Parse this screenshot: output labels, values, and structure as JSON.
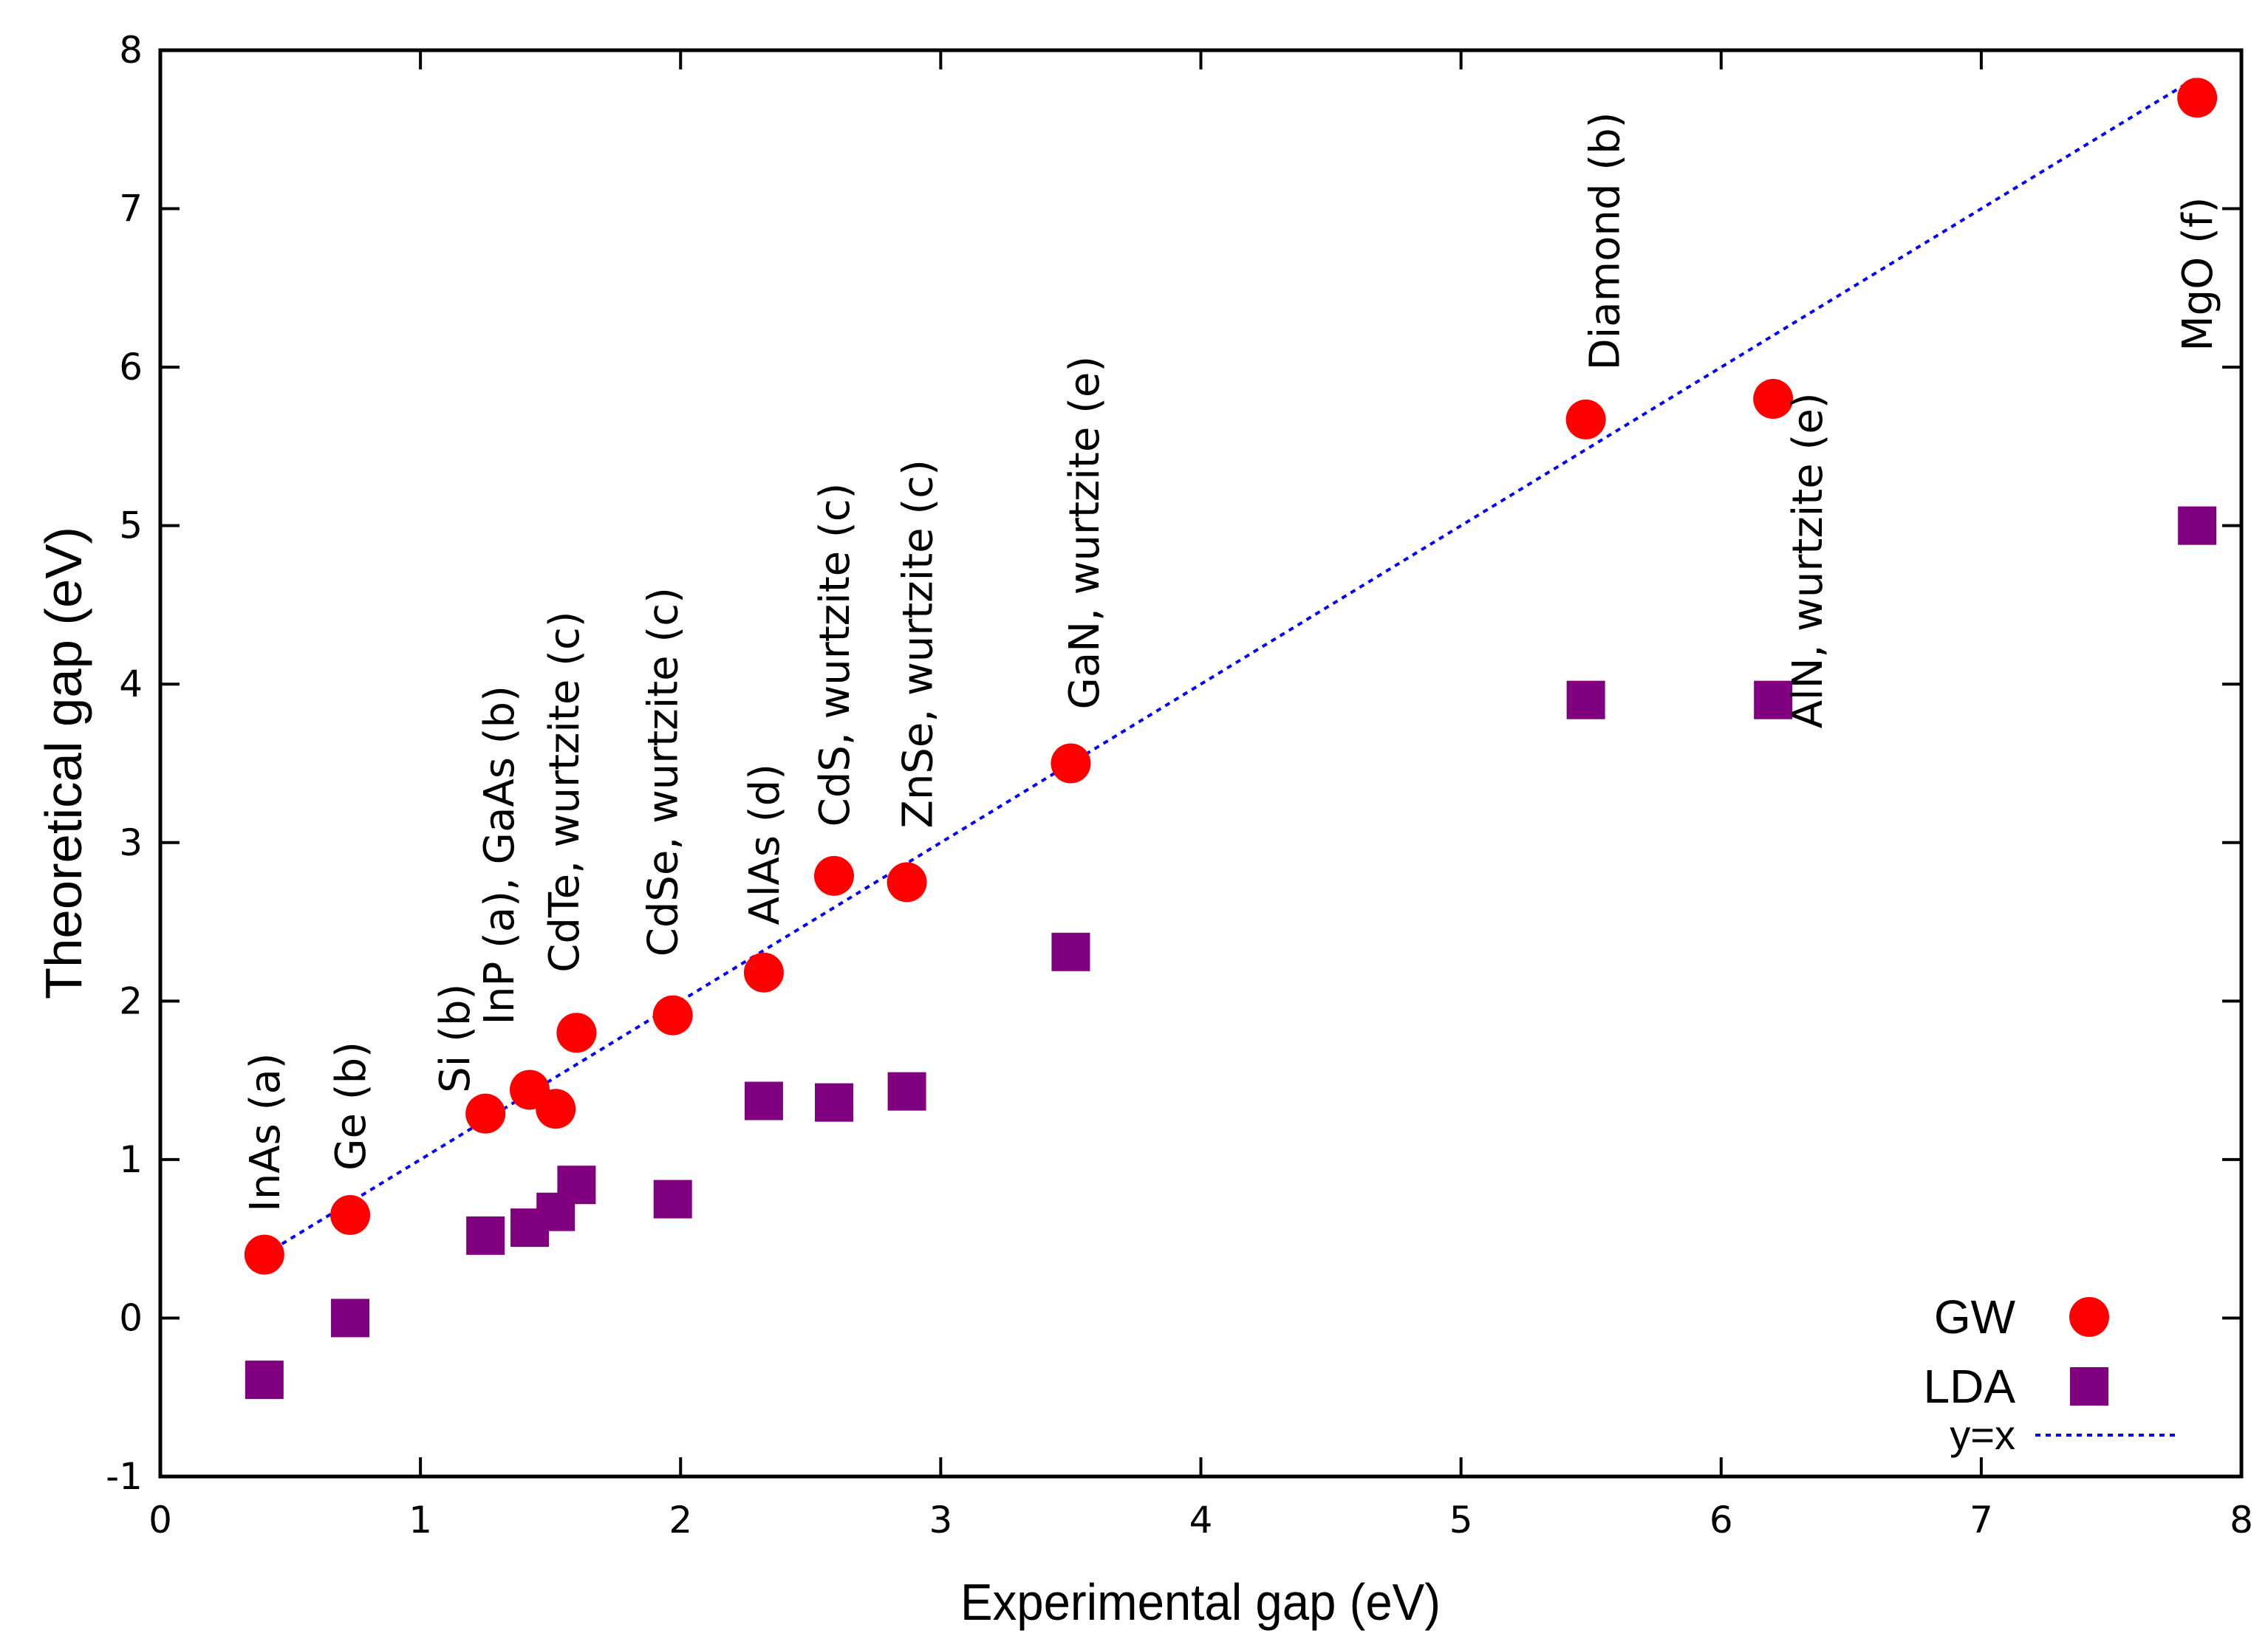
{
  "chart_data": {
    "type": "scatter",
    "title": "",
    "xlabel": "Experimental gap (eV)",
    "ylabel": "Theoretical gap (eV)",
    "xlim": [
      0,
      8
    ],
    "ylim": [
      -1,
      8
    ],
    "xticks": [
      0,
      1,
      2,
      3,
      4,
      5,
      6,
      7,
      8
    ],
    "yticks": [
      -1,
      0,
      1,
      2,
      3,
      4,
      5,
      6,
      7,
      8
    ],
    "grid": false,
    "legend_position": "bottom-right",
    "colors": {
      "gw": "#ff0000",
      "lda": "#800080",
      "line": "#0000ff"
    },
    "series": [
      {
        "name": "GW",
        "marker": "circle",
        "points": [
          {
            "x": 0.4,
            "y": 0.4
          },
          {
            "x": 0.73,
            "y": 0.65
          },
          {
            "x": 1.25,
            "y": 1.29
          },
          {
            "x": 1.42,
            "y": 1.44
          },
          {
            "x": 1.52,
            "y": 1.32
          },
          {
            "x": 1.6,
            "y": 1.8
          },
          {
            "x": 1.97,
            "y": 1.91
          },
          {
            "x": 2.32,
            "y": 2.18
          },
          {
            "x": 2.59,
            "y": 2.79
          },
          {
            "x": 2.87,
            "y": 2.75
          },
          {
            "x": 3.5,
            "y": 3.5
          },
          {
            "x": 5.48,
            "y": 5.67
          },
          {
            "x": 6.2,
            "y": 5.8
          },
          {
            "x": 7.83,
            "y": 7.7
          }
        ]
      },
      {
        "name": "LDA",
        "marker": "square",
        "points": [
          {
            "x": 0.4,
            "y": -0.39
          },
          {
            "x": 0.73,
            "y": 0.0
          },
          {
            "x": 1.25,
            "y": 0.52
          },
          {
            "x": 1.42,
            "y": 0.57
          },
          {
            "x": 1.52,
            "y": 0.67
          },
          {
            "x": 1.6,
            "y": 0.84
          },
          {
            "x": 1.97,
            "y": 0.75
          },
          {
            "x": 2.32,
            "y": 1.37
          },
          {
            "x": 2.59,
            "y": 1.36
          },
          {
            "x": 2.87,
            "y": 1.43
          },
          {
            "x": 3.5,
            "y": 2.31
          },
          {
            "x": 5.48,
            "y": 3.9
          },
          {
            "x": 6.2,
            "y": 3.9
          },
          {
            "x": 7.83,
            "y": 5.0
          }
        ]
      },
      {
        "name": "y=x",
        "style": "dotted-line",
        "points": [
          {
            "x": 0.4,
            "y": 0.4
          },
          {
            "x": 7.83,
            "y": 7.83
          }
        ]
      }
    ],
    "annotations": [
      {
        "text": "InAs (a)",
        "x": 0.4,
        "y": 0.67
      },
      {
        "text": "Ge (b)",
        "x": 0.73,
        "y": 0.93
      },
      {
        "text": "Si (b)",
        "x": 1.13,
        "y": 1.42
      },
      {
        "text": "InP (a), GaAs (b)",
        "x": 1.3,
        "y": 1.85
      },
      {
        "text": "CdTe, wurtzite (c)",
        "x": 1.55,
        "y": 2.18
      },
      {
        "text": "CdSe, wurtzite (c)",
        "x": 1.93,
        "y": 2.28
      },
      {
        "text": "AlAs (d)",
        "x": 2.32,
        "y": 2.48
      },
      {
        "text": "CdS, wurtzite (c)",
        "x": 2.59,
        "y": 3.1
      },
      {
        "text": "ZnSe, wurtzite (c)",
        "x": 2.91,
        "y": 3.09
      },
      {
        "text": "GaN, wurtzite (e)",
        "x": 3.55,
        "y": 3.84
      },
      {
        "text": "Diamond (b)",
        "x": 5.55,
        "y": 5.98
      },
      {
        "text": "AlN, wurtzite (e)",
        "x": 6.33,
        "y": 3.72
      },
      {
        "text": "MgO (f)",
        "x": 7.83,
        "y": 6.1
      }
    ]
  }
}
